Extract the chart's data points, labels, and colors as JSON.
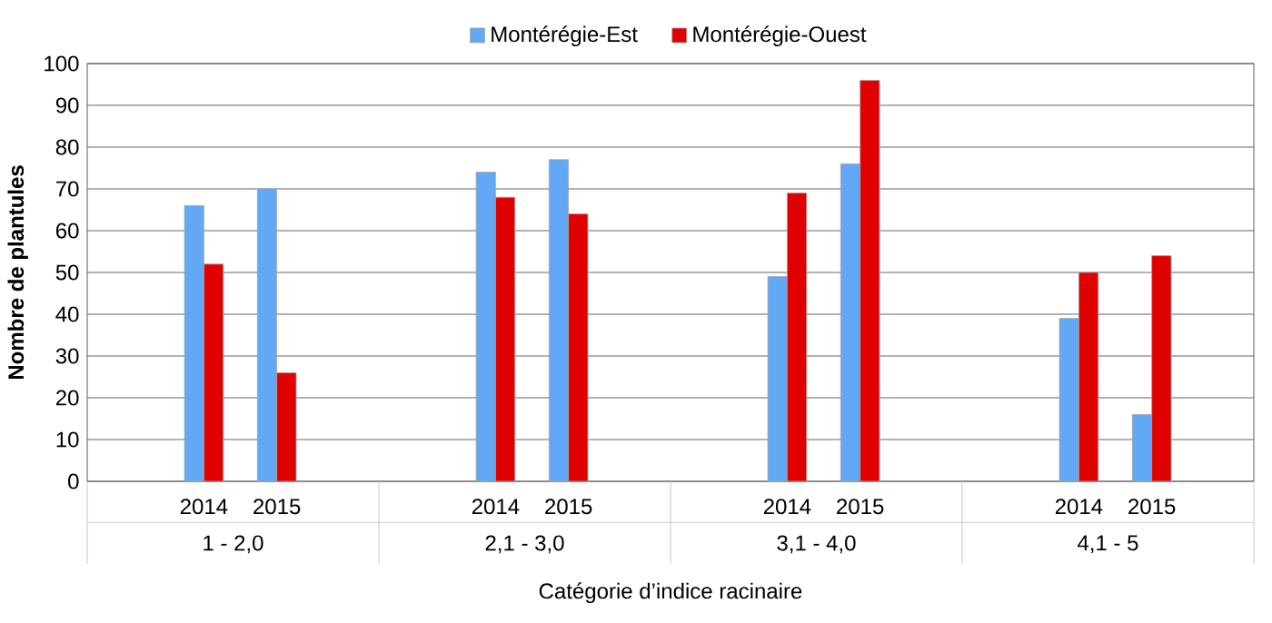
{
  "chart_data": {
    "type": "bar",
    "xlabel": "Catégorie d’indice racinaire",
    "ylabel": "Nombre de plantules",
    "categories": [
      "2014",
      "2015",
      "2014",
      "2015",
      "2014",
      "2015",
      "2014",
      "2015"
    ],
    "annotations": [
      "1 - 2,0",
      "2,1 - 3,0",
      "3,1 - 4,0",
      "4,1 - 5"
    ],
    "series": [
      {
        "name": "Montérégie-Est",
        "color": "#62a8f5",
        "values": [
          66,
          70,
          74,
          77,
          49,
          76,
          39,
          16
        ]
      },
      {
        "name": "Montérégie-Ouest",
        "color": "#e00000",
        "values": [
          52,
          26,
          68,
          64,
          69,
          96,
          50,
          54
        ]
      }
    ],
    "ylim": [
      0,
      100
    ],
    "yticks": [
      0,
      10,
      20,
      30,
      40,
      50,
      60,
      70,
      80,
      90,
      100
    ],
    "grid": "y",
    "legend": "top"
  }
}
